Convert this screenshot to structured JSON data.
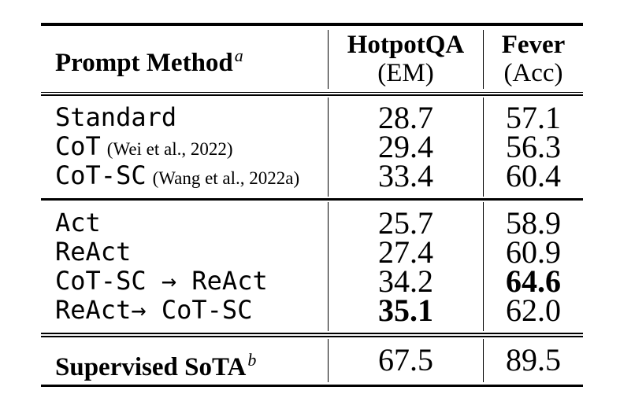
{
  "header": {
    "method_label": "Prompt Method",
    "method_sup": "a",
    "col1_title": "HotpotQA",
    "col1_metric": "(EM)",
    "col2_title": "Fever",
    "col2_metric": "(Acc)"
  },
  "group1": {
    "rows": [
      {
        "method": "Standard",
        "citation": "",
        "hotpotqa": "28.7",
        "fever": "57.1",
        "hotpotqa_bold": false,
        "fever_bold": false
      },
      {
        "method": "CoT",
        "citation": "(Wei et al., 2022)",
        "hotpotqa": "29.4",
        "fever": "56.3",
        "hotpotqa_bold": false,
        "fever_bold": false
      },
      {
        "method": "CoT-SC",
        "citation": "(Wang et al., 2022a)",
        "hotpotqa": "33.4",
        "fever": "60.4",
        "hotpotqa_bold": false,
        "fever_bold": false
      }
    ]
  },
  "group2": {
    "rows": [
      {
        "method": "Act",
        "citation": "",
        "hotpotqa": "25.7",
        "fever": "58.9",
        "hotpotqa_bold": false,
        "fever_bold": false
      },
      {
        "method": "ReAct",
        "citation": "",
        "hotpotqa": "27.4",
        "fever": "60.9",
        "hotpotqa_bold": false,
        "fever_bold": false
      },
      {
        "method": "CoT-SC → ReAct",
        "citation": "",
        "hotpotqa": "34.2",
        "fever": "64.6",
        "hotpotqa_bold": false,
        "fever_bold": true
      },
      {
        "method": "ReAct→ CoT-SC",
        "citation": "",
        "hotpotqa": "35.1",
        "fever": "62.0",
        "hotpotqa_bold": true,
        "fever_bold": false
      }
    ]
  },
  "footer": {
    "label": "Supervised SoTA",
    "sup": "b",
    "hotpotqa": "67.5",
    "fever": "89.5"
  },
  "colors": {
    "text": "#000000",
    "background": "#ffffff",
    "rule": "#000000"
  },
  "chart_data": {
    "type": "table",
    "columns": [
      "Prompt Method",
      "HotpotQA (EM)",
      "Fever (Acc)"
    ],
    "rows": [
      [
        "Standard",
        28.7,
        57.1
      ],
      [
        "CoT (Wei et al., 2022)",
        29.4,
        56.3
      ],
      [
        "CoT-SC (Wang et al., 2022a)",
        33.4,
        60.4
      ],
      [
        "Act",
        25.7,
        58.9
      ],
      [
        "ReAct",
        27.4,
        60.9
      ],
      [
        "CoT-SC → ReAct",
        34.2,
        64.6
      ],
      [
        "ReAct→ CoT-SC",
        35.1,
        62.0
      ],
      [
        "Supervised SoTA",
        67.5,
        89.5
      ]
    ],
    "bold_cells": [
      [
        5,
        2
      ],
      [
        6,
        1
      ],
      [
        6,
        0
      ],
      [
        5,
        0
      ]
    ],
    "row_groups": [
      [
        0,
        1,
        2
      ],
      [
        3,
        4,
        5,
        6
      ],
      [
        7
      ]
    ]
  }
}
